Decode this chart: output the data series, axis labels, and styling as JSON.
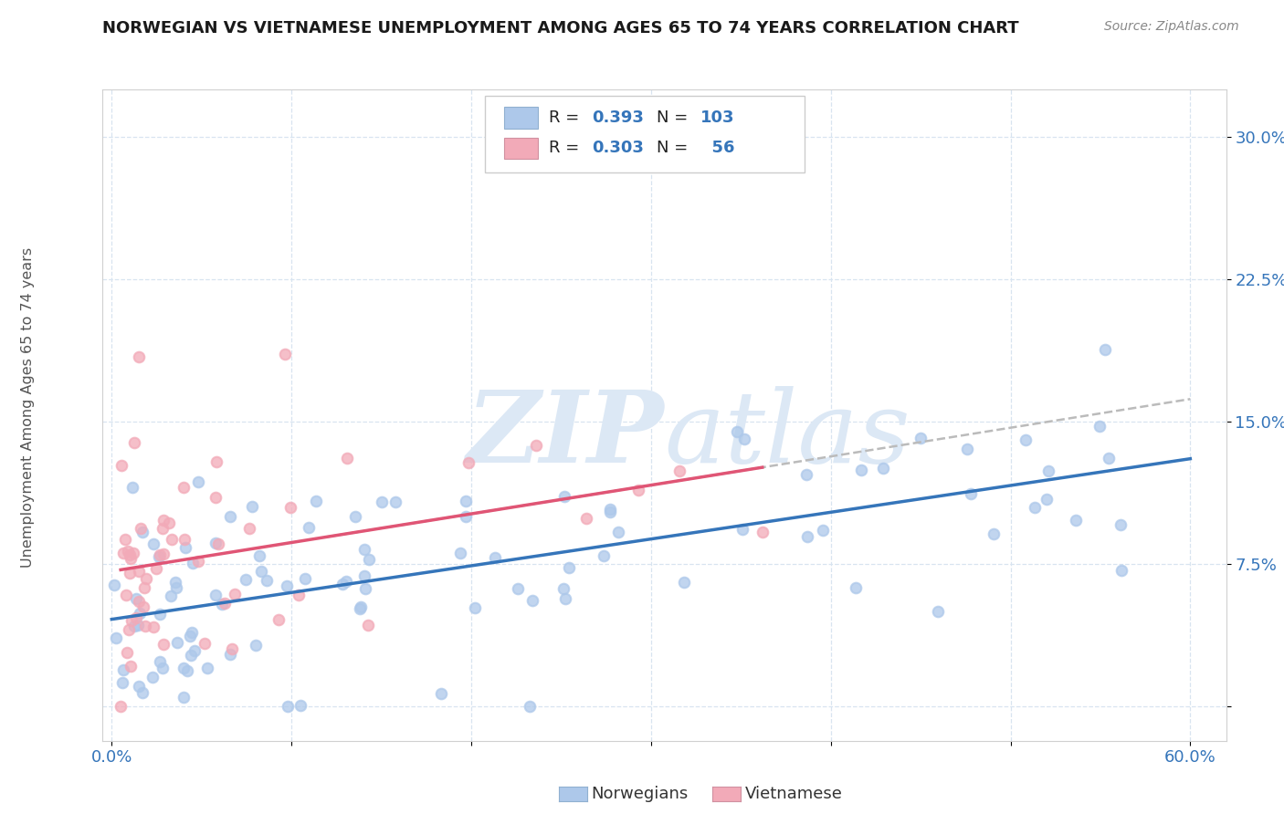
{
  "title": "NORWEGIAN VS VIETNAMESE UNEMPLOYMENT AMONG AGES 65 TO 74 YEARS CORRELATION CHART",
  "source": "Source: ZipAtlas.com",
  "ylabel": "Unemployment Among Ages 65 to 74 years",
  "xlim": [
    -0.005,
    0.62
  ],
  "ylim": [
    -0.018,
    0.325
  ],
  "xticks": [
    0.0,
    0.1,
    0.2,
    0.3,
    0.4,
    0.5,
    0.6
  ],
  "xticklabels": [
    "0.0%",
    "",
    "",
    "",
    "",
    "",
    "60.0%"
  ],
  "yticks": [
    0.0,
    0.075,
    0.15,
    0.225,
    0.3
  ],
  "yticklabels": [
    "",
    "7.5%",
    "15.0%",
    "22.5%",
    "30.0%"
  ],
  "r_norwegian": 0.393,
  "n_norwegian": 103,
  "r_vietnamese": 0.303,
  "n_vietnamese": 56,
  "norwegian_scatter_color": "#adc8ea",
  "vietnamese_scatter_color": "#f2aab8",
  "norwegian_line_color": "#3575ba",
  "vietnamese_line_color": "#e05575",
  "vietnamese_dash_color": "#cccccc",
  "grid_color": "#d8e4f0",
  "background_color": "#ffffff",
  "watermark_color": "#dce8f5",
  "legend_label_1": "Norwegians",
  "legend_label_2": "Vietnamese",
  "title_color": "#1a1a1a",
  "source_color": "#888888",
  "tick_color": "#3575ba"
}
